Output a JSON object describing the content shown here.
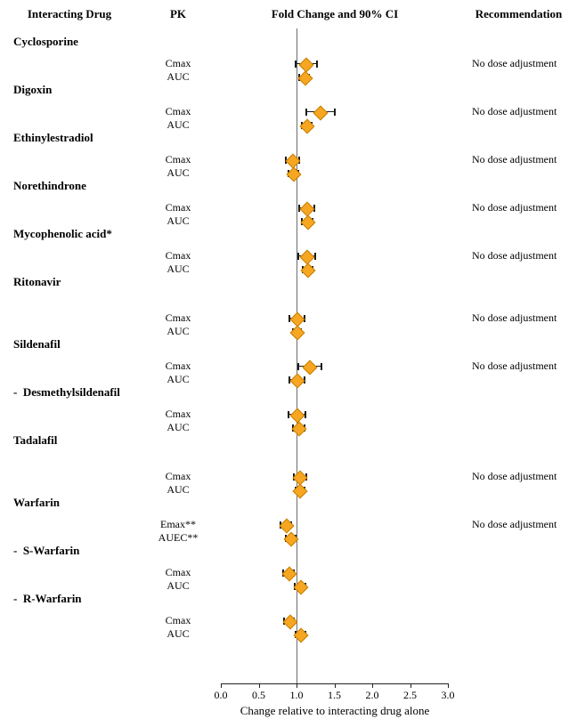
{
  "figure": {
    "header": {
      "interacting_drug": "Interacting Drug",
      "pk": "PK",
      "fold_change": "Fold Change and 90% CI",
      "recommendation": "Recommendation"
    }
  },
  "axis": {
    "min": 0.0,
    "max": 3.0,
    "ticks": [
      0.0,
      0.5,
      1.0,
      1.5,
      2.0,
      2.5,
      3.0
    ],
    "tick_labels": [
      "0.0",
      "0.5",
      "1.0",
      "1.5",
      "2.0",
      "2.5",
      "3.0"
    ],
    "reference_value": 1.0,
    "xlabel": "Change relative to interacting drug alone"
  },
  "colors": {
    "diamond_fill": "#F6A621",
    "diamond_border": "#C87E00",
    "error_bar": "#1a1a1a",
    "reference_line": "#6e6e6e"
  },
  "chart_data": {
    "type": "forest",
    "title": "Fold Change and 90% CI",
    "xlabel": "Change relative to interacting drug alone",
    "xlim": [
      0.0,
      3.0
    ],
    "reference_line": 1.0,
    "ci_level": "90% CI",
    "groups": [
      {
        "drug": "Cyclosporine",
        "recommendation": "No dose adjustment",
        "extra_space": false,
        "rows": [
          {
            "pk": "Cmax",
            "est": 1.12,
            "lo": 0.99,
            "hi": 1.27
          },
          {
            "pk": "AUC",
            "est": 1.1,
            "lo": 1.04,
            "hi": 1.17
          }
        ]
      },
      {
        "drug": "Digoxin",
        "recommendation": "No dose adjustment",
        "extra_space": false,
        "rows": [
          {
            "pk": "Cmax",
            "est": 1.3,
            "lo": 1.13,
            "hi": 1.5
          },
          {
            "pk": "AUC",
            "est": 1.13,
            "lo": 1.07,
            "hi": 1.2
          }
        ]
      },
      {
        "drug": "Ethinylestradiol",
        "recommendation": "No dose adjustment",
        "extra_space": false,
        "rows": [
          {
            "pk": "Cmax",
            "est": 0.94,
            "lo": 0.86,
            "hi": 1.03
          },
          {
            "pk": "AUC",
            "est": 0.95,
            "lo": 0.89,
            "hi": 1.02
          }
        ]
      },
      {
        "drug": "Norethindrone",
        "recommendation": "No dose adjustment",
        "extra_space": false,
        "rows": [
          {
            "pk": "Cmax",
            "est": 1.13,
            "lo": 1.04,
            "hi": 1.23
          },
          {
            "pk": "AUC",
            "est": 1.14,
            "lo": 1.07,
            "hi": 1.21
          }
        ]
      },
      {
        "drug": "Mycophenolic acid*",
        "recommendation": "No dose adjustment",
        "extra_space": false,
        "rows": [
          {
            "pk": "Cmax",
            "est": 1.13,
            "lo": 1.02,
            "hi": 1.25
          },
          {
            "pk": "AUC",
            "est": 1.14,
            "lo": 1.08,
            "hi": 1.21
          }
        ]
      },
      {
        "drug": "Ritonavir",
        "recommendation": "No dose adjustment",
        "extra_space": true,
        "rows": [
          {
            "pk": "Cmax",
            "est": 1.0,
            "lo": 0.91,
            "hi": 1.1
          },
          {
            "pk": "AUC",
            "est": 1.0,
            "lo": 0.95,
            "hi": 1.06
          }
        ]
      },
      {
        "drug": "Sildenafil",
        "recommendation": "No dose adjustment",
        "extra_space": false,
        "rows": [
          {
            "pk": "Cmax",
            "est": 1.16,
            "lo": 1.02,
            "hi": 1.33
          },
          {
            "pk": "AUC",
            "est": 1.0,
            "lo": 0.91,
            "hi": 1.1
          }
        ]
      },
      {
        "drug": "-  Desmethylsildenafil",
        "recommendation": null,
        "extra_space": false,
        "rows": [
          {
            "pk": "Cmax",
            "est": 1.0,
            "lo": 0.89,
            "hi": 1.12
          },
          {
            "pk": "AUC",
            "est": 1.02,
            "lo": 0.95,
            "hi": 1.1
          }
        ]
      },
      {
        "drug": "Tadalafil",
        "recommendation": "No dose adjustment",
        "extra_space": true,
        "rows": [
          {
            "pk": "Cmax",
            "est": 1.04,
            "lo": 0.96,
            "hi": 1.13
          },
          {
            "pk": "AUC",
            "est": 1.04,
            "lo": 0.99,
            "hi": 1.1
          }
        ]
      },
      {
        "drug": "Warfarin",
        "recommendation": "No dose adjustment",
        "extra_space": false,
        "rows": [
          {
            "pk": "Emax**",
            "est": 0.86,
            "lo": 0.79,
            "hi": 0.93
          },
          {
            "pk": "AUEC**",
            "est": 0.92,
            "lo": 0.86,
            "hi": 0.99
          }
        ]
      },
      {
        "drug": "-  S-Warfarin",
        "recommendation": null,
        "extra_space": false,
        "rows": [
          {
            "pk": "Cmax",
            "est": 0.89,
            "lo": 0.82,
            "hi": 0.97
          },
          {
            "pk": "AUC",
            "est": 1.05,
            "lo": 0.98,
            "hi": 1.12
          }
        ]
      },
      {
        "drug": "-  R-Warfarin",
        "recommendation": null,
        "extra_space": false,
        "rows": [
          {
            "pk": "Cmax",
            "est": 0.9,
            "lo": 0.83,
            "hi": 0.97
          },
          {
            "pk": "AUC",
            "est": 1.05,
            "lo": 0.99,
            "hi": 1.12
          }
        ]
      }
    ]
  }
}
